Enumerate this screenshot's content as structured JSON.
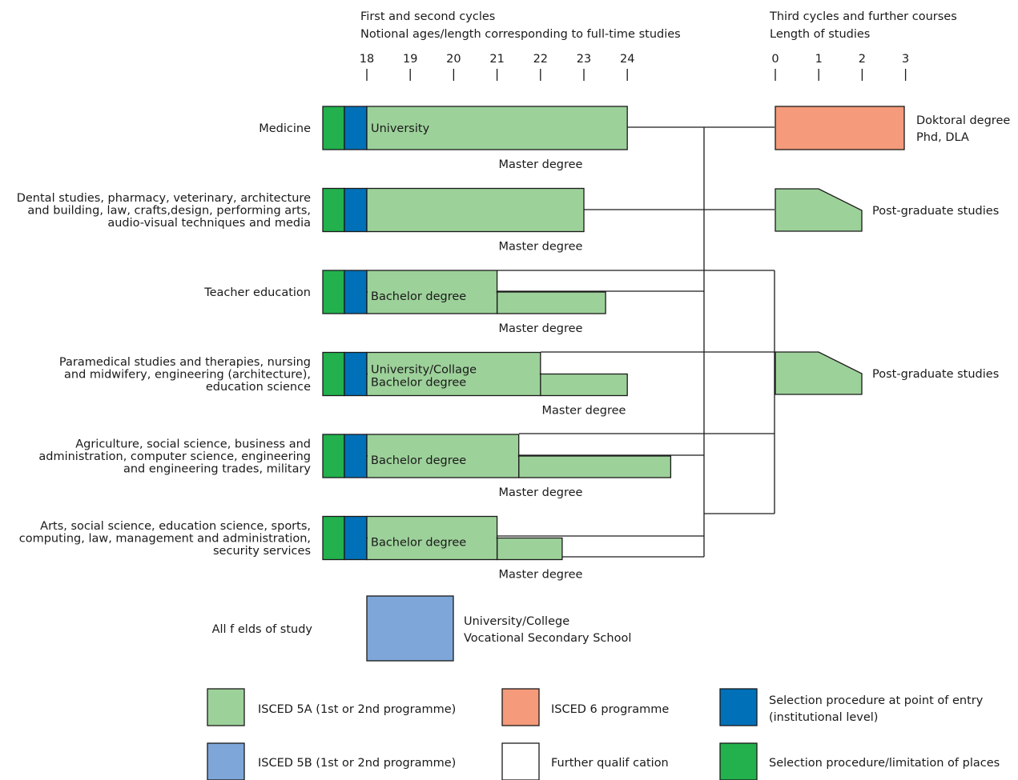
{
  "colors": {
    "isced5a": "#9dd19a",
    "isced5b": "#7ea6d8",
    "isced6": "#f59a7a",
    "selection_entry": "#0070b8",
    "selection_limit": "#22b14c",
    "further": "#ffffff"
  },
  "header": {
    "left_line1": "First and second cycles",
    "left_line2": "Notional ages/length corresponding to full-time studies",
    "right_line1": "Third cycles and further courses",
    "right_line2": "Length of studies",
    "ages": [
      "18",
      "19",
      "20",
      "21",
      "22",
      "23",
      "24"
    ],
    "years": [
      "0",
      "1",
      "2",
      "3"
    ]
  },
  "rows": [
    {
      "field_lines": [
        "Medicine"
      ],
      "bar1_label_lines": [
        "University"
      ],
      "bar1_end_age": 24,
      "bar2_end_age": null,
      "master_label": "Master degree"
    },
    {
      "field_lines": [
        "Dental studies, pharmacy, veterinary, architecture",
        "and building, law, crafts,design, performing arts,",
        "audio-visual techniques and media"
      ],
      "bar1_label_lines": [],
      "bar1_end_age": 23,
      "bar2_end_age": null,
      "master_label": "Master degree"
    },
    {
      "field_lines": [
        "Teacher education"
      ],
      "bar1_label_lines": [
        "Bachelor degree"
      ],
      "bar1_end_age": 21,
      "bar2_end_age": 23.5,
      "master_label": "Master degree"
    },
    {
      "field_lines": [
        "Paramedical studies and therapies, nursing",
        "and midwifery, engineering (architecture),",
        "education science"
      ],
      "bar1_label_lines": [
        "University/Collage",
        "Bachelor degree"
      ],
      "bar1_end_age": 22,
      "bar2_end_age": 24,
      "master_label": "Master degree"
    },
    {
      "field_lines": [
        "Agriculture, social science, business and",
        "administration, computer science, engineering",
        "and engineering trades, military"
      ],
      "bar1_label_lines": [
        "Bachelor degree"
      ],
      "bar1_end_age": 21.5,
      "bar2_end_age": 25,
      "master_label": "Master degree"
    },
    {
      "field_lines": [
        "Arts, social science, education science, sports,",
        "computing, law, management and administration,",
        "security services"
      ],
      "bar1_label_lines": [
        "Bachelor degree"
      ],
      "bar1_end_age": 21,
      "bar2_end_age": 22.5,
      "master_label": "Master degree"
    }
  ],
  "all_fields": {
    "label": "All f elds of study",
    "desc_line1": "University/College",
    "desc_line2": "Vocational Secondary School"
  },
  "third_cycle": {
    "doctoral_line1": "Doktoral degree",
    "doctoral_line2": "Phd, DLA",
    "postgrad_1": "Post-graduate studies",
    "postgrad_2": "Post-graduate studies"
  },
  "legend": {
    "isced5a": "ISCED 5A  (1st or 2nd programme)",
    "isced5b": "ISCED 5B (1st or 2nd programme)",
    "isced6": "ISCED 6 programme",
    "further": "Further qualif cation",
    "selection_entry_line1": "Selection procedure at point of entry",
    "selection_entry_line2": "(institutional level)",
    "selection_limit": "Selection procedure/limitation of places"
  }
}
